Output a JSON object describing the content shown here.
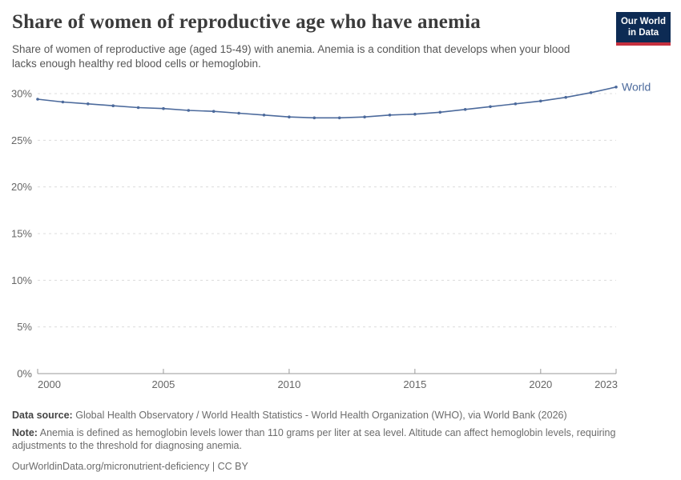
{
  "header": {
    "title": "Share of women of reproductive age who have anemia",
    "subtitle": "Share of women of reproductive age (aged 15-49) with anemia. Anemia is a condition that develops when your blood lacks enough healthy red blood cells or hemoglobin.",
    "logo": {
      "line1": "Our World",
      "line2": "in Data",
      "bg_color": "#0d2b54",
      "stripe_color": "#c5303e"
    }
  },
  "chart_data": {
    "type": "line",
    "title": "Share of women of reproductive age who have anemia",
    "x": [
      2000,
      2001,
      2002,
      2003,
      2004,
      2005,
      2006,
      2007,
      2008,
      2009,
      2010,
      2011,
      2012,
      2013,
      2014,
      2015,
      2016,
      2017,
      2018,
      2019,
      2020,
      2021,
      2022,
      2023
    ],
    "series": [
      {
        "name": "World",
        "color": "#4c6a9c",
        "values": [
          29.4,
          29.1,
          28.9,
          28.7,
          28.5,
          28.4,
          28.2,
          28.1,
          27.9,
          27.7,
          27.5,
          27.4,
          27.4,
          27.5,
          27.7,
          27.8,
          28.0,
          28.3,
          28.6,
          28.9,
          29.2,
          29.6,
          30.1,
          30.7
        ]
      }
    ],
    "xlabel": "",
    "ylabel": "",
    "ylim": [
      0,
      30
    ],
    "yticks": [
      0,
      5,
      10,
      15,
      20,
      25,
      30
    ],
    "ytick_suffix": "%",
    "xticks": [
      2000,
      2005,
      2010,
      2015,
      2020,
      2023
    ],
    "grid": "horizontal-dashed",
    "legend": "line-end-label",
    "grid_color": "#dcdcdc",
    "axis_color": "#9a9a9a",
    "tick_label_color": "#666666"
  },
  "footer": {
    "data_source_label": "Data source:",
    "data_source_text": "Global Health Observatory / World Health Statistics - World Health Organization (WHO), via World Bank (2026)",
    "note_label": "Note:",
    "note_text": "Anemia is defined as hemoglobin levels lower than 110 grams per liter at sea level. Altitude can affect hemoglobin levels, requiring adjustments to the threshold for diagnosing anemia.",
    "link": "OurWorldinData.org/micronutrient-deficiency | CC BY"
  }
}
